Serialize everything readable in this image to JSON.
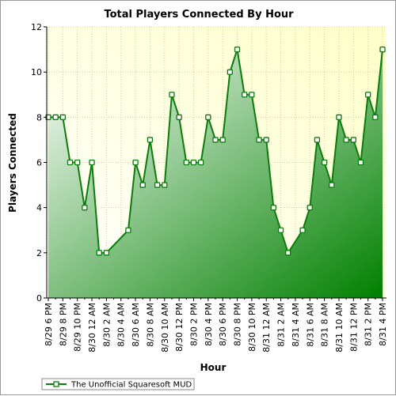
{
  "chart_data": {
    "type": "area",
    "title": "Total Players Connected By Hour",
    "xlabel": "Hour",
    "ylabel": "Players Connected",
    "ylim": [
      0,
      12
    ],
    "yticks": [
      0,
      2,
      4,
      6,
      8,
      10,
      12
    ],
    "grid": true,
    "legend_position": "bottom-left",
    "x": [
      "8/29 6 PM",
      "",
      "8/29 8 PM",
      "",
      "8/29 10 PM",
      "",
      "8/30 12 AM",
      "",
      "8/30 2 AM",
      "",
      "8/30 4 AM",
      "",
      "8/30 6 AM",
      "",
      "8/30 8 AM",
      "",
      "8/30 10 AM",
      "",
      "8/30 12 PM",
      "",
      "8/30 2 PM",
      "",
      "8/30 4 PM",
      "",
      "8/30 6 PM",
      "",
      "8/30 8 PM",
      "",
      "8/30 10 PM",
      "",
      "8/31 12 AM",
      "",
      "8/31 2 AM",
      "",
      "8/31 4 AM",
      "",
      "8/31 6 AM",
      "",
      "8/31 8 AM",
      "",
      "8/31 10 AM",
      "",
      "8/31 12 PM",
      "",
      "8/31 2 PM",
      "",
      "8/31 4 PM"
    ],
    "series": [
      {
        "name": "The Unofficial Squaresoft MUD",
        "color": "#0a7d0a",
        "values": [
          8,
          8,
          8,
          6,
          6,
          4,
          6,
          2,
          2,
          null,
          null,
          3,
          6,
          5,
          7,
          5,
          5,
          9,
          8,
          6,
          6,
          6,
          8,
          7,
          7,
          10,
          11,
          9,
          9,
          7,
          7,
          4,
          3,
          2,
          null,
          3,
          4,
          7,
          6,
          5,
          8,
          7,
          7,
          6,
          9,
          8,
          11
        ]
      }
    ]
  }
}
